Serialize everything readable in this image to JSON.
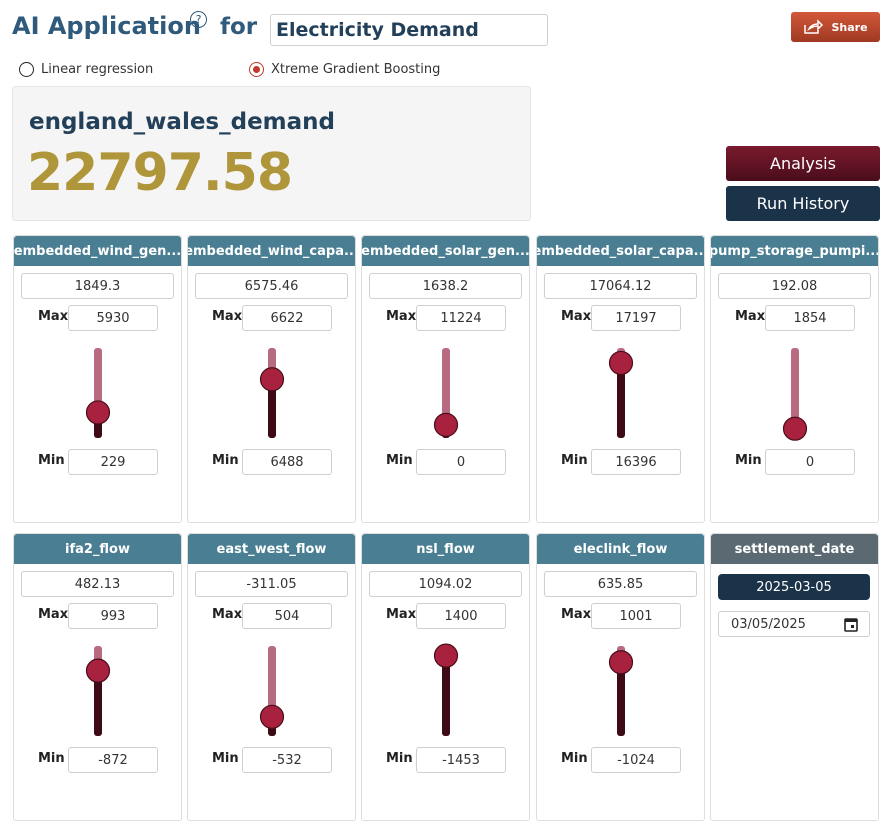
{
  "header": {
    "title": "AI Application",
    "help": "?",
    "for": "for",
    "target": "Electricity Demand",
    "share": "Share"
  },
  "models": [
    {
      "label": "Linear regression",
      "selected": false
    },
    {
      "label": "Xtreme Gradient Boosting",
      "selected": true
    }
  ],
  "result": {
    "name": "england_wales_demand",
    "value": 22797.58
  },
  "buttons": [
    "Analysis",
    "Run History"
  ],
  "max_label": "Max",
  "min_label": "Min",
  "features": [
    {
      "name": "embedded_wind_gen...",
      "value": 1849.3,
      "max": 5930,
      "min": 229
    },
    {
      "name": "embedded_wind_capa...",
      "value": 6575.46,
      "max": 6622,
      "min": 6488
    },
    {
      "name": "embedded_solar_gen...",
      "value": 1638.2,
      "max": 11224,
      "min": 0
    },
    {
      "name": "embedded_solar_capa...",
      "value": 17064.12,
      "max": 17197,
      "min": 16396
    },
    {
      "name": "pump_storage_pumpi...",
      "value": 192.08,
      "max": 1854,
      "min": 0
    },
    {
      "name": "ifa2_flow",
      "value": 482.13,
      "max": 993,
      "min": -872
    },
    {
      "name": "east_west_flow",
      "value": -311.05,
      "max": 504,
      "min": -532
    },
    {
      "name": "nsl_flow",
      "value": 1094.02,
      "max": 1400,
      "min": -1453
    },
    {
      "name": "eleclink_flow",
      "value": 635.85,
      "max": 1001,
      "min": -1024
    }
  ],
  "date_card": {
    "name": "settlement_date",
    "value": "2025-03-05",
    "input": "03/05/2025"
  }
}
